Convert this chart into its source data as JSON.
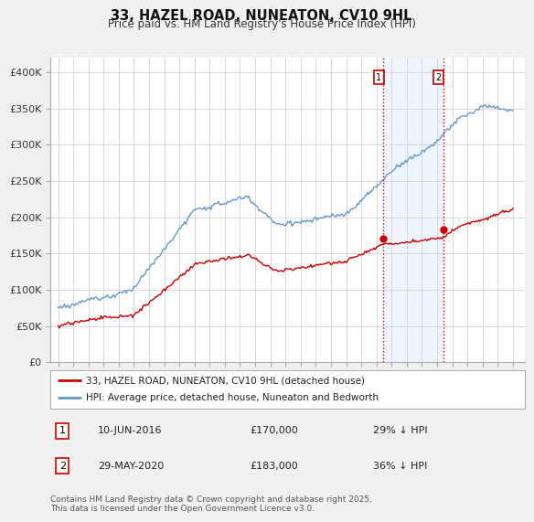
{
  "title": "33, HAZEL ROAD, NUNEATON, CV10 9HL",
  "subtitle": "Price paid vs. HM Land Registry's House Price Index (HPI)",
  "background_color": "#f0f0f0",
  "plot_bg_color": "#ffffff",
  "ylim": [
    0,
    420000
  ],
  "yticks": [
    0,
    50000,
    100000,
    150000,
    200000,
    250000,
    300000,
    350000,
    400000
  ],
  "ytick_labels": [
    "£0",
    "£50K",
    "£100K",
    "£150K",
    "£200K",
    "£250K",
    "£300K",
    "£350K",
    "£400K"
  ],
  "hpi_color": "#6699cc",
  "hpi_fill_color": "#ddeeff",
  "price_color": "#cc0000",
  "vline_color": "#cc0000",
  "shade_color": "#ddeeff",
  "point1_date": 2016.44,
  "point1_price": 170000,
  "point2_date": 2020.41,
  "point2_price": 183000,
  "legend_label1": "33, HAZEL ROAD, NUNEATON, CV10 9HL (detached house)",
  "legend_label2": "HPI: Average price, detached house, Nuneaton and Bedworth",
  "annotation1_date": "10-JUN-2016",
  "annotation1_price": "£170,000",
  "annotation1_note": "29% ↓ HPI",
  "annotation2_date": "29-MAY-2020",
  "annotation2_price": "£183,000",
  "annotation2_note": "36% ↓ HPI",
  "footer": "Contains HM Land Registry data © Crown copyright and database right 2025.\nThis data is licensed under the Open Government Licence v3.0.",
  "xlim_left": 1994.5,
  "xlim_right": 2025.8
}
